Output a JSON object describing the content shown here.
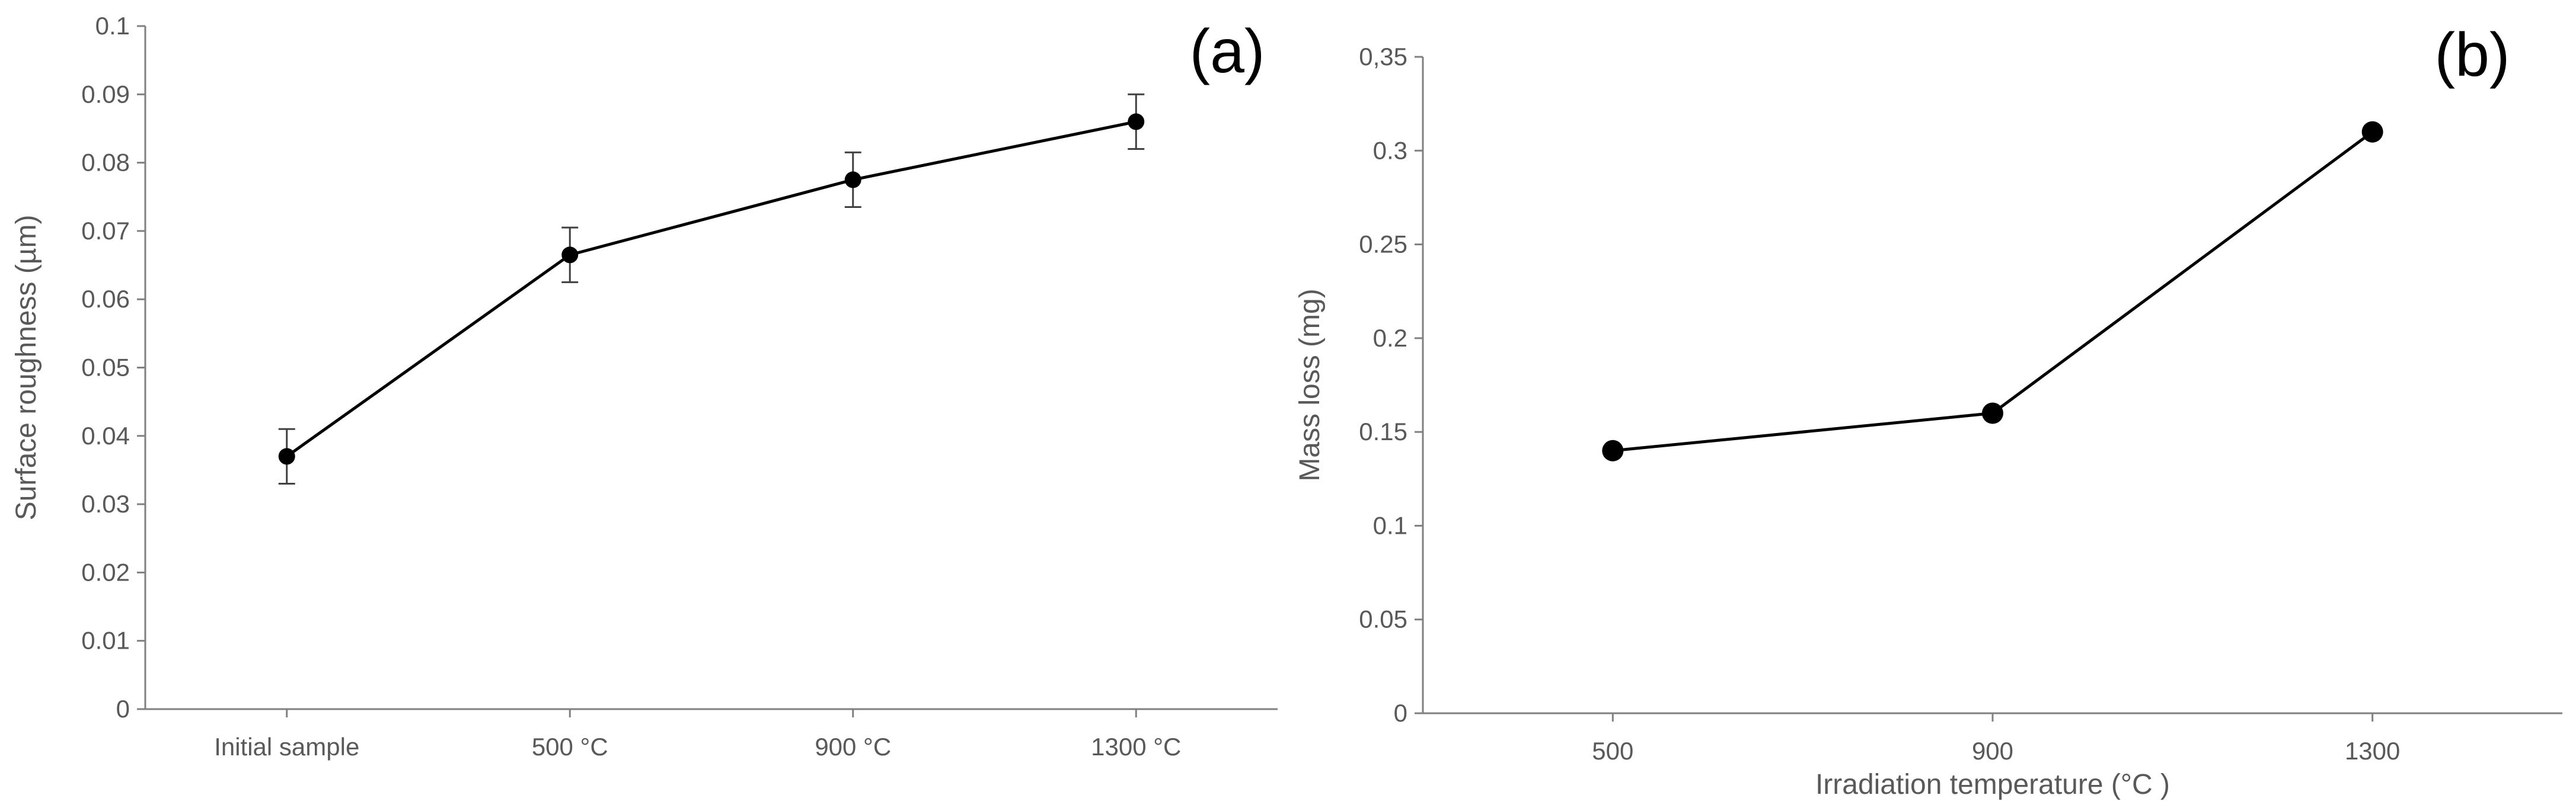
{
  "chart_data": [
    {
      "type": "line",
      "panel_label": "(a)",
      "title": "",
      "xlabel": "",
      "ylabel": "Surface roughness (µm)",
      "categories": [
        "Initial sample",
        "500 °C",
        "900 °C",
        "1300 °C"
      ],
      "values": [
        0.037,
        0.0665,
        0.0775,
        0.086
      ],
      "error": [
        0.004,
        0.004,
        0.004,
        0.004
      ],
      "ylim": [
        0,
        0.1
      ],
      "yticks": [
        "0",
        "0.01",
        "0.02",
        "0.03",
        "0.04",
        "0.05",
        "0.06",
        "0.07",
        "0.08",
        "0.09",
        "0.1"
      ],
      "grid": false,
      "colors": {
        "line": "#000000",
        "marker": "#000000",
        "axis": "#808080",
        "text": "#595959"
      }
    },
    {
      "type": "line",
      "panel_label": "(b)",
      "title": "",
      "xlabel": "Irradiation temperature (°C )",
      "ylabel": "Mass loss (mg)",
      "categories": [
        "500",
        "900",
        "1300"
      ],
      "values": [
        0.14,
        0.16,
        0.31
      ],
      "ylim": [
        0,
        0.35
      ],
      "yticks": [
        "0",
        "0.05",
        "0.1",
        "0.15",
        "0.2",
        "0.25",
        "0.3",
        "0,35"
      ],
      "grid": false,
      "colors": {
        "line": "#000000",
        "marker": "#000000",
        "axis": "#808080",
        "text": "#595959"
      }
    }
  ]
}
